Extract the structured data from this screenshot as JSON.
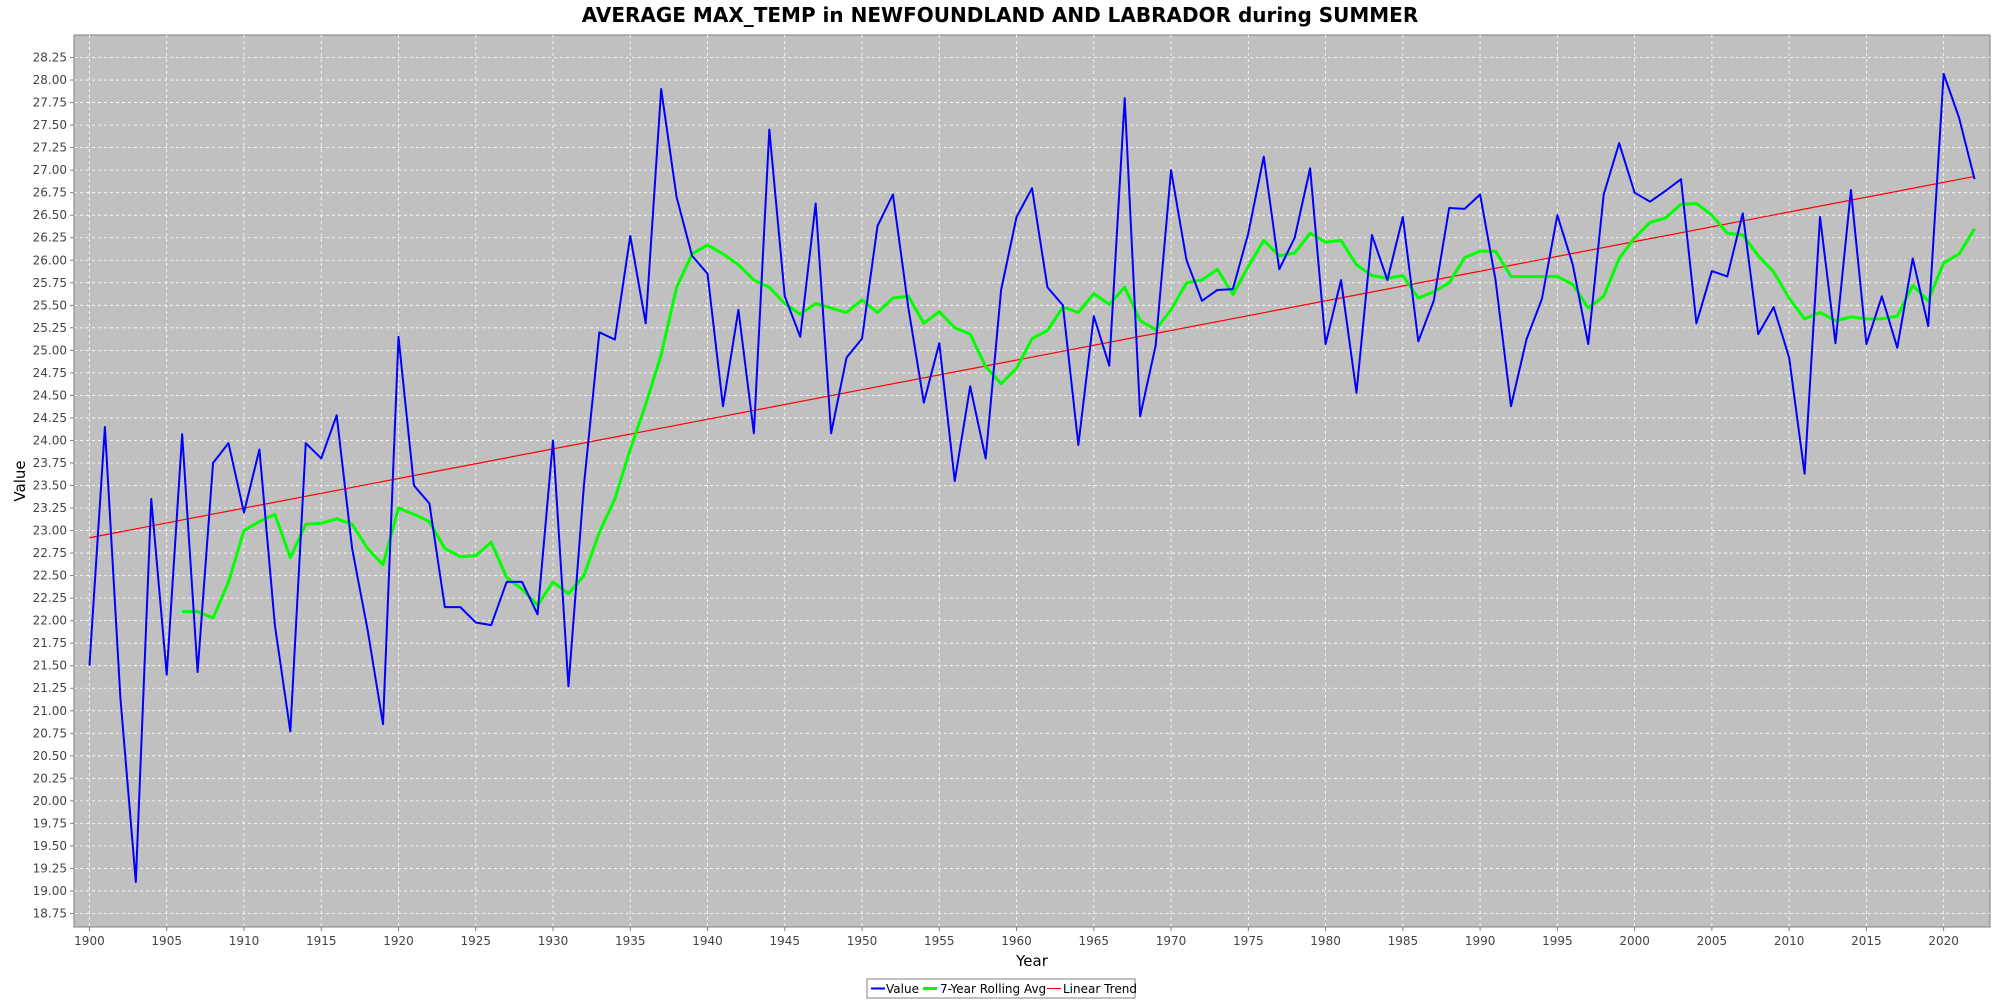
{
  "chart_data": {
    "type": "line",
    "title": "AVERAGE MAX_TEMP in NEWFOUNDLAND AND LABRADOR during SUMMER",
    "xlabel": "Year",
    "ylabel": "Value",
    "xlim": [
      1899,
      2023
    ],
    "ylim": [
      18.6,
      28.5
    ],
    "x_ticks": [
      1900,
      1905,
      1910,
      1915,
      1920,
      1925,
      1930,
      1935,
      1940,
      1945,
      1950,
      1955,
      1960,
      1965,
      1970,
      1975,
      1980,
      1985,
      1990,
      1995,
      2000,
      2005,
      2010,
      2015,
      2020
    ],
    "y_ticks": [
      18.75,
      19.0,
      19.25,
      19.5,
      19.75,
      20.0,
      20.25,
      20.5,
      20.75,
      21.0,
      21.25,
      21.5,
      21.75,
      22.0,
      22.25,
      22.5,
      22.75,
      23.0,
      23.25,
      23.5,
      23.75,
      24.0,
      24.25,
      24.5,
      24.75,
      25.0,
      25.25,
      25.5,
      25.75,
      26.0,
      26.25,
      26.5,
      26.75,
      27.0,
      27.25,
      27.5,
      27.75,
      28.0,
      28.25
    ],
    "grid": true,
    "legend_position": "bottom-center",
    "colors": {
      "plot_bg": "#c0c0c0",
      "grid": "#ffffff",
      "value": "#0000ff",
      "rolling": "#00ff00",
      "trend": "#ff0000"
    },
    "series": [
      {
        "name": "Value",
        "x_start": 1900,
        "values": [
          21.5,
          24.15,
          21.15,
          19.1,
          23.35,
          21.4,
          24.07,
          21.43,
          23.75,
          23.97,
          23.2,
          23.9,
          21.95,
          20.77,
          23.97,
          23.8,
          24.28,
          22.8,
          21.9,
          20.85,
          25.15,
          23.5,
          23.3,
          22.15,
          22.15,
          21.98,
          21.95,
          22.43,
          22.43,
          22.07,
          24.0,
          21.27,
          23.5,
          25.2,
          25.12,
          26.27,
          25.3,
          27.9,
          26.7,
          26.05,
          25.85,
          24.38,
          25.45,
          24.08,
          27.45,
          25.6,
          25.15,
          26.63,
          24.08,
          24.92,
          25.13,
          26.38,
          26.73,
          25.47,
          24.42,
          25.08,
          23.55,
          24.6,
          23.8,
          25.67,
          26.48,
          26.8,
          25.7,
          25.5,
          23.95,
          25.38,
          24.83,
          27.8,
          24.27,
          25.05,
          27.0,
          26.0,
          25.55,
          25.67,
          25.68,
          26.3,
          27.15,
          25.9,
          26.25,
          27.02,
          25.07,
          25.78,
          24.53,
          26.28,
          25.78,
          26.48,
          25.1,
          25.55,
          26.58,
          26.57,
          26.73,
          25.78,
          24.38,
          25.12,
          25.57,
          26.5,
          25.95,
          25.07,
          26.73,
          27.3,
          26.75,
          26.65,
          26.77,
          26.9,
          25.3,
          25.88,
          25.82,
          26.52,
          25.18,
          25.48,
          24.92,
          23.63,
          26.48,
          25.08,
          26.78,
          25.07,
          25.6,
          25.03,
          26.02,
          25.27,
          28.07,
          27.58,
          26.9
        ]
      },
      {
        "name": "7-Year Rolling Avg",
        "x_start": 1906,
        "values": [
          22.1,
          22.1,
          22.03,
          22.43,
          23.0,
          23.1,
          23.18,
          22.7,
          23.07,
          23.08,
          23.13,
          23.07,
          22.8,
          22.62,
          23.25,
          23.18,
          23.1,
          22.8,
          22.71,
          22.72,
          22.87,
          22.48,
          22.35,
          22.17,
          22.43,
          22.3,
          22.5,
          22.98,
          23.35,
          23.9,
          24.4,
          24.95,
          25.7,
          26.07,
          26.17,
          26.07,
          25.95,
          25.78,
          25.7,
          25.52,
          25.4,
          25.52,
          25.47,
          25.42,
          25.56,
          25.42,
          25.58,
          25.6,
          25.3,
          25.43,
          25.25,
          25.18,
          24.82,
          24.63,
          24.8,
          25.13,
          25.22,
          25.48,
          25.42,
          25.63,
          25.51,
          25.7,
          25.33,
          25.23,
          25.45,
          25.75,
          25.78,
          25.9,
          25.62,
          25.93,
          26.22,
          26.05,
          26.08,
          26.3,
          26.2,
          26.22,
          25.95,
          25.83,
          25.8,
          25.83,
          25.58,
          25.65,
          25.75,
          26.03,
          26.1,
          26.1,
          25.82,
          25.82,
          25.82,
          25.82,
          25.73,
          25.47,
          25.6,
          26.02,
          26.25,
          26.42,
          26.47,
          26.62,
          26.63,
          26.5,
          26.3,
          26.28,
          26.05,
          25.87,
          25.58,
          25.35,
          25.42,
          25.33,
          25.37,
          25.35,
          25.35,
          25.38,
          25.72,
          25.55,
          25.97,
          26.07,
          26.35
        ]
      },
      {
        "name": "Linear Trend",
        "x": [
          1900,
          2022
        ],
        "values": [
          22.92,
          26.93
        ]
      }
    ]
  }
}
